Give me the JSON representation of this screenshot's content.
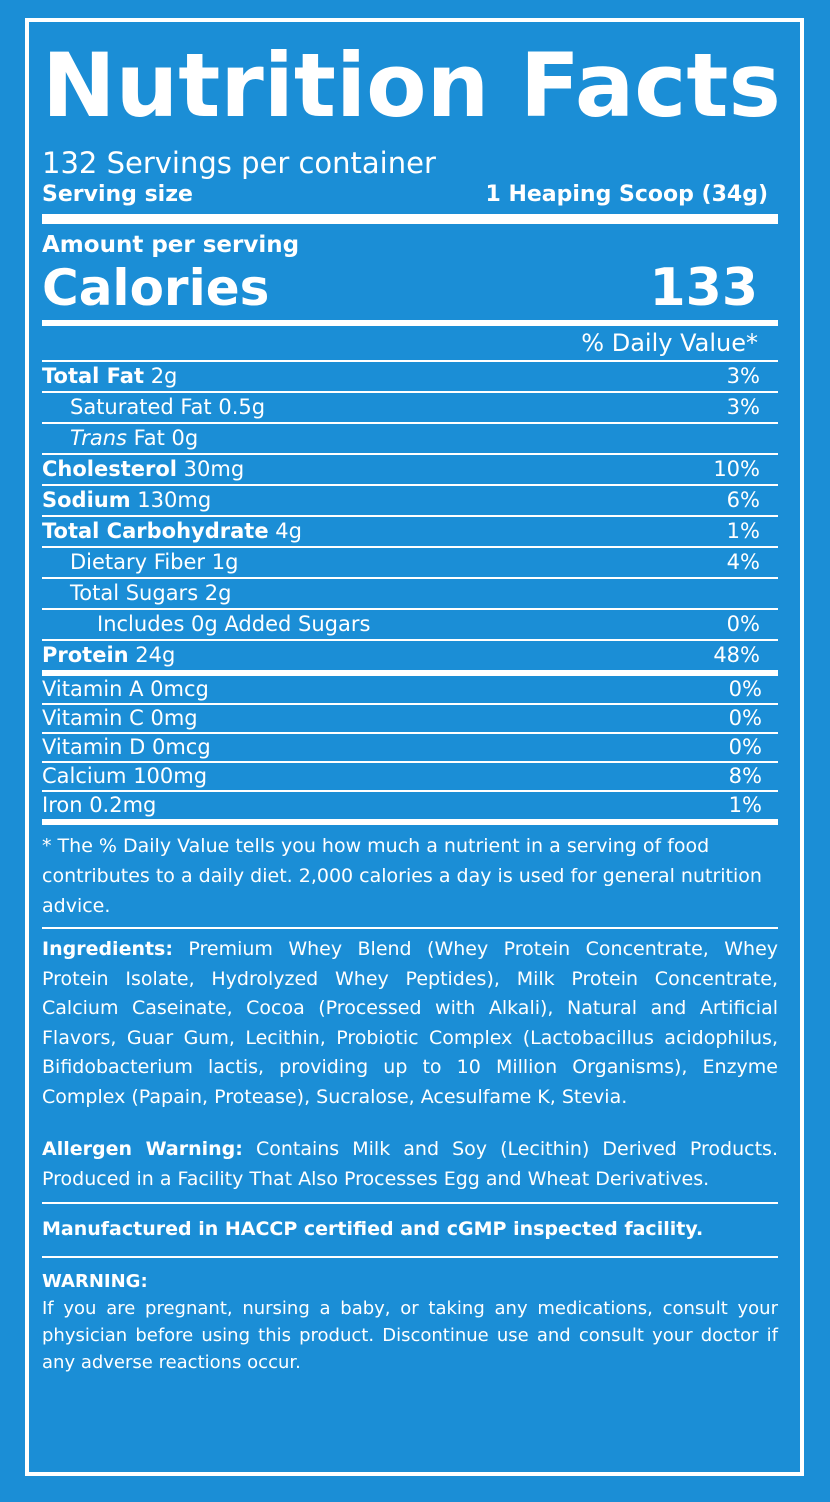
{
  "label": {
    "title": "Nutrition Facts",
    "servings_per_container": "132 Servings per container",
    "serving_size_label": "Serving size",
    "serving_size_value": "1 Heaping Scoop (34g)",
    "amount_per_serving": "Amount per serving",
    "calories_label": "Calories",
    "calories_value": "133",
    "daily_value_header": "% Daily Value*"
  },
  "nutrients": [
    {
      "name": "Total Fat",
      "amount": " 2g",
      "dv": "3%"
    },
    {
      "name": "Saturated Fat 0.5g",
      "dv": "3%"
    },
    {
      "name_italic": "Trans",
      "name_rest": " Fat 0g",
      "dv": ""
    },
    {
      "name": "Cholesterol",
      "amount": " 30mg",
      "dv": "10%"
    },
    {
      "name": "Sodium",
      "amount": " 130mg",
      "dv": "6%"
    },
    {
      "name": "Total Carbohydrate",
      "amount": " 4g",
      "dv": "1%"
    },
    {
      "name": "Dietary Fiber 1g",
      "dv": "4%"
    },
    {
      "name": "Total Sugars 2g",
      "dv": ""
    },
    {
      "name": "Includes 0g Added Sugars",
      "dv": "0%"
    },
    {
      "name": "Protein",
      "amount": " 24g",
      "dv": "48%"
    }
  ],
  "vitamins": [
    {
      "name": "Vitamin A 0mcg",
      "dv": "0%"
    },
    {
      "name": "Vitamin C 0mg",
      "dv": "0%"
    },
    {
      "name": "Vitamin D 0mcg",
      "dv": "0%"
    },
    {
      "name": "Calcium 100mg",
      "dv": "8%"
    },
    {
      "name": "Iron 0.2mg",
      "dv": "1%"
    }
  ],
  "footnote": "* The % Daily Value tells you how much a nutrient in a serving of food contributes to a daily diet. 2,000 calories a day is used for general nutrition advice.",
  "ingredients": {
    "label": "Ingredients:",
    "text": " Premium Whey Blend (Whey Protein Concentrate, Whey Protein Isolate, Hydrolyzed Whey Peptides), Milk Protein Concentrate, Calcium Caseinate, Cocoa (Processed with Alkali), Natural and Artificial Flavors, Guar Gum, Lecithin, Probiotic Complex (Lactobacillus acidophilus, Bifidobacterium lactis, providing up to 10 Million Organisms), Enzyme Complex (Papain, Protease), Sucralose, Acesulfame K, Stevia."
  },
  "allergen": {
    "label": "Allergen Warning:",
    "text": " Contains Milk and Soy (Lecithin) Derived Products. Produced in a Facility That Also Processes Egg and Wheat Derivatives."
  },
  "manufactured": "Manufactured in HACCP certified and cGMP inspected facility.",
  "warning": {
    "label": "WARNING:",
    "text": "If you are pregnant, nursing a baby, or taking any medications, consult your physician before using this product. Discontinue use and consult your doctor if any adverse reactions occur."
  },
  "colors": {
    "background": "#1b8ed6",
    "foreground": "#ffffff"
  }
}
